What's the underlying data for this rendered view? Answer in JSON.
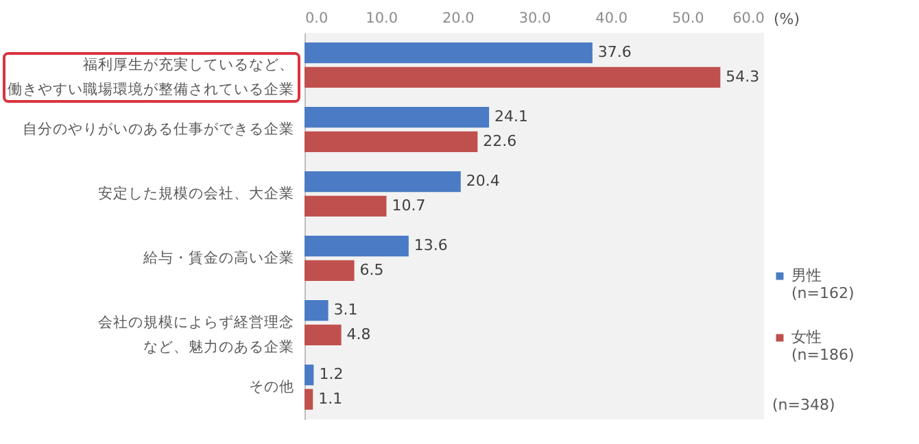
{
  "chart_data": {
    "type": "bar",
    "orientation": "horizontal",
    "xlabel": "(%)",
    "categories": [
      "福利厚生が充実しているなど、働きやすい職場環境が整備されている企業",
      "自分のやりがいのある仕事ができる企業",
      "安定した規模の会社、大企業",
      "給与・賃金の高い企業",
      "会社の規模によらず経営理念など、魅力のある企業",
      "その他"
    ],
    "series": [
      {
        "name": "男性\n(n=162)",
        "color": "#4a7bc4",
        "values": [
          37.6,
          24.1,
          20.4,
          13.6,
          3.1,
          1.2
        ]
      },
      {
        "name": "女性\n(n=186)",
        "color": "#c0504d",
        "values": [
          54.3,
          22.6,
          10.7,
          6.5,
          4.8,
          1.1
        ]
      }
    ],
    "xlim": [
      0,
      60
    ],
    "xticks": [
      {
        "value": 0,
        "label": "0.0"
      },
      {
        "value": 10,
        "label": "10.0"
      },
      {
        "value": 20,
        "label": "20.0"
      },
      {
        "value": 30,
        "label": "30.0"
      },
      {
        "value": 40,
        "label": "40.0"
      },
      {
        "value": 50,
        "label": "50.0"
      },
      {
        "value": 60,
        "label": "60.0"
      }
    ],
    "data_labels": true,
    "legend": "bottom right",
    "annotations": [
      "(n=348)"
    ]
  }
}
